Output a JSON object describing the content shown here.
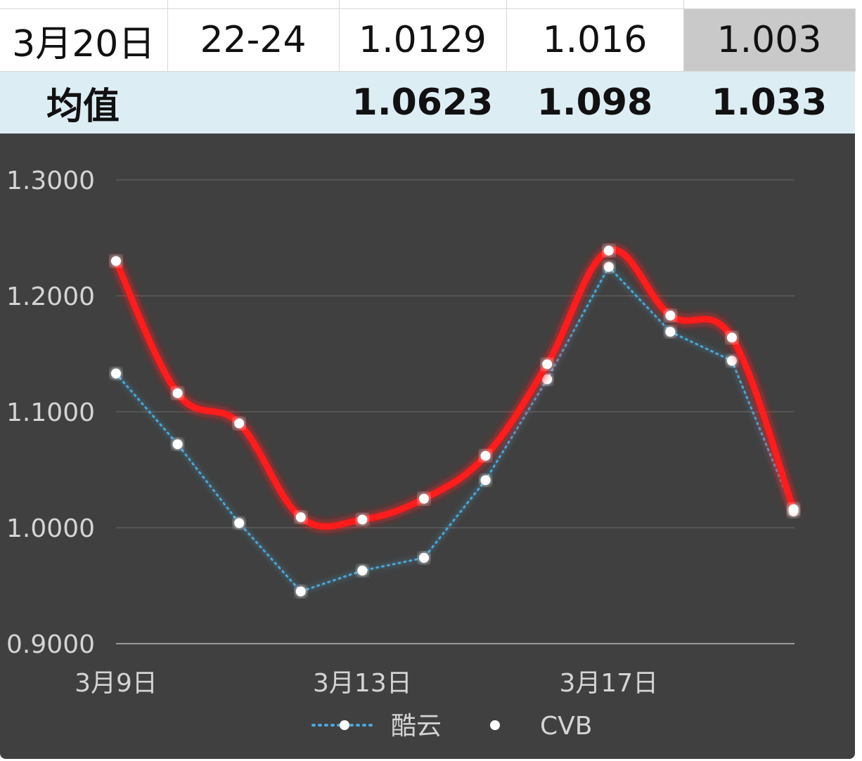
{
  "table": {
    "date_row": {
      "date": "3月20日",
      "time": "22-24",
      "v1": "1.0129",
      "v2": "1.016",
      "v3": "1.003"
    },
    "avg_row": {
      "label": "均值",
      "v1": "1.0623",
      "v2": "1.098",
      "v3": "1.033"
    }
  },
  "colors": {
    "cvb": "#ff1a1a",
    "kuyun": "#4aa8d8",
    "panel": "#404040",
    "avg_row_bg": "#dcedf3",
    "highlight_cell": "#c9c9c9"
  },
  "chart_data": {
    "type": "line",
    "y_ticks": [
      "1.3000",
      "1.2000",
      "1.1000",
      "1.0000",
      "0.9000"
    ],
    "ylim": [
      0.9,
      1.3
    ],
    "x_tick_labels": [
      {
        "index": 0,
        "label": "3月9日"
      },
      {
        "index": 4,
        "label": "3月13日"
      },
      {
        "index": 8,
        "label": "3月17日"
      }
    ],
    "point_count": 12,
    "series": [
      {
        "name": "酷云",
        "style": "dotted",
        "values": [
          1.133,
          1.072,
          1.004,
          0.945,
          0.963,
          0.974,
          1.041,
          1.128,
          1.225,
          1.169,
          1.144,
          1.014
        ]
      },
      {
        "name": "CVB",
        "style": "solid",
        "values": [
          1.23,
          1.116,
          1.09,
          1.009,
          1.007,
          1.025,
          1.062,
          1.141,
          1.239,
          1.183,
          1.164,
          1.016
        ]
      }
    ],
    "grid": true,
    "legend_position": "bottom"
  }
}
